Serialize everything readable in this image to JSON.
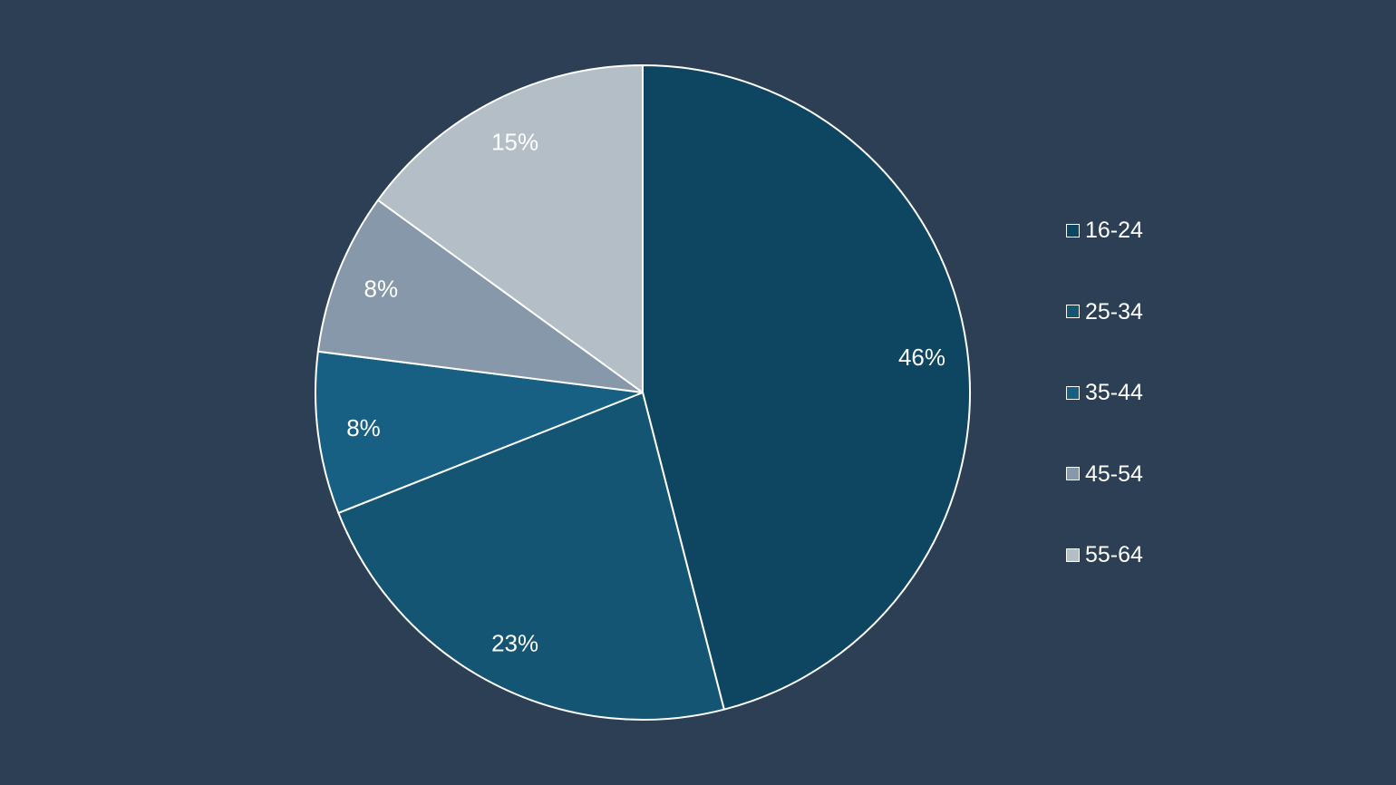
{
  "chart_data": {
    "type": "pie",
    "categories": [
      "16-24",
      "25-34",
      "35-44",
      "45-54",
      "55-64"
    ],
    "values": [
      46,
      23,
      8,
      8,
      15
    ],
    "value_labels": [
      "46%",
      "23%",
      "8%",
      "8%",
      "15%"
    ],
    "colors": [
      "#0e4661",
      "#135573",
      "#176083",
      "#8798aa",
      "#b4bec7"
    ],
    "start_angle": "12 o'clock",
    "direction": "clockwise",
    "slice_border_color": "#ffffff",
    "legend_placement": "right",
    "background": "#2c3f55"
  }
}
